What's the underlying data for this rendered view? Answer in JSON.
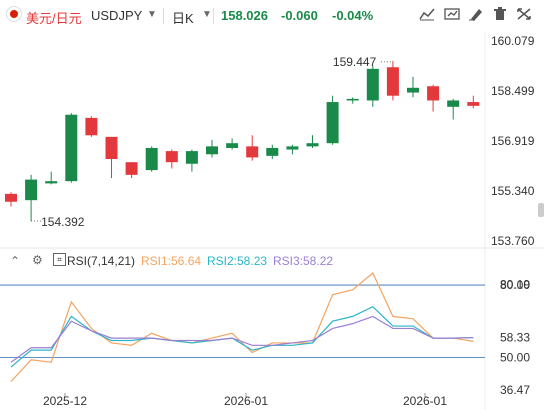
{
  "header": {
    "pair_name": "美元/日元",
    "symbol": "USDJPY",
    "period": "日K",
    "last_price": "158.026",
    "change": "-0.060",
    "change_pct": "-0.04%",
    "tool_icons": [
      "line-chart-icon",
      "compare-icon",
      "draw-icon",
      "delete-icon",
      "fullscreen-icon"
    ]
  },
  "price_axis": {
    "labels": [
      "160.079",
      "158.499",
      "156.919",
      "155.340",
      "153.760"
    ]
  },
  "annotations": {
    "high": "159.447",
    "low": "154.392"
  },
  "x_axis": {
    "labels": [
      "2025-12",
      "2026-01",
      "2026-01"
    ]
  },
  "rsi": {
    "title": "RSI(7,14,21)",
    "rsi1": "RSI1:56.64",
    "rsi2": "RSI2:58.23",
    "rsi3": "RSI3:58.22",
    "axis_labels": [
      "80.00",
      "80.19",
      "58.33",
      "50.00",
      "36.47"
    ],
    "colors": {
      "rsi1": "#f4a460",
      "rsi2": "#2bb5c8",
      "rsi3": "#9b7fd4"
    }
  },
  "colors": {
    "up": "#1a8a4a",
    "down": "#e4393c",
    "accent": "#2b6cb0"
  },
  "chart_data": {
    "type": "candlestick",
    "price_range": [
      153.76,
      160.079
    ],
    "candles": [
      {
        "o": 155.25,
        "c": 155.0,
        "h": 155.3,
        "l": 154.85,
        "dir": "down"
      },
      {
        "o": 155.05,
        "c": 155.7,
        "h": 155.85,
        "l": 154.39,
        "dir": "up"
      },
      {
        "o": 155.58,
        "c": 155.65,
        "h": 155.95,
        "l": 155.55,
        "dir": "up"
      },
      {
        "o": 155.65,
        "c": 157.75,
        "h": 157.8,
        "l": 155.6,
        "dir": "up"
      },
      {
        "o": 157.65,
        "c": 157.1,
        "h": 157.7,
        "l": 157.05,
        "dir": "down"
      },
      {
        "o": 157.05,
        "c": 156.35,
        "h": 157.05,
        "l": 155.75,
        "dir": "down"
      },
      {
        "o": 156.25,
        "c": 155.85,
        "h": 156.25,
        "l": 155.75,
        "dir": "down"
      },
      {
        "o": 156.0,
        "c": 156.7,
        "h": 156.75,
        "l": 155.95,
        "dir": "up"
      },
      {
        "o": 156.6,
        "c": 156.25,
        "h": 156.65,
        "l": 156.05,
        "dir": "down"
      },
      {
        "o": 156.2,
        "c": 156.6,
        "h": 156.65,
        "l": 155.95,
        "dir": "up"
      },
      {
        "o": 156.5,
        "c": 156.75,
        "h": 156.95,
        "l": 156.4,
        "dir": "up"
      },
      {
        "o": 156.7,
        "c": 156.85,
        "h": 157.0,
        "l": 156.65,
        "dir": "up"
      },
      {
        "o": 156.75,
        "c": 156.4,
        "h": 157.1,
        "l": 156.3,
        "dir": "down"
      },
      {
        "o": 156.45,
        "c": 156.7,
        "h": 156.8,
        "l": 156.35,
        "dir": "up"
      },
      {
        "o": 156.65,
        "c": 156.75,
        "h": 156.8,
        "l": 156.5,
        "dir": "up"
      },
      {
        "o": 156.75,
        "c": 156.85,
        "h": 157.1,
        "l": 156.7,
        "dir": "up"
      },
      {
        "o": 156.85,
        "c": 158.15,
        "h": 158.35,
        "l": 156.8,
        "dir": "up"
      },
      {
        "o": 158.2,
        "c": 158.25,
        "h": 158.3,
        "l": 158.1,
        "dir": "up"
      },
      {
        "o": 158.2,
        "c": 159.2,
        "h": 159.3,
        "l": 158.0,
        "dir": "up"
      },
      {
        "o": 159.25,
        "c": 158.35,
        "h": 159.45,
        "l": 158.2,
        "dir": "down"
      },
      {
        "o": 158.45,
        "c": 158.6,
        "h": 158.95,
        "l": 158.3,
        "dir": "up"
      },
      {
        "o": 158.65,
        "c": 158.2,
        "h": 158.7,
        "l": 157.85,
        "dir": "down"
      },
      {
        "o": 158.0,
        "c": 158.2,
        "h": 158.25,
        "l": 157.6,
        "dir": "up"
      },
      {
        "o": 158.15,
        "c": 158.03,
        "h": 158.35,
        "l": 157.95,
        "dir": "down"
      }
    ],
    "rsi_series": [
      {
        "name": "RSI1",
        "values": [
          40,
          49,
          48,
          73,
          62,
          56,
          55,
          60,
          57,
          56,
          58,
          60,
          52,
          56,
          56,
          56,
          76,
          78,
          85,
          67,
          66,
          58,
          58,
          56.64
        ]
      },
      {
        "name": "RSI2",
        "values": [
          46,
          53,
          53,
          67,
          61,
          57,
          57,
          58,
          57,
          56,
          57,
          58,
          53,
          55,
          55,
          56,
          65,
          67,
          71,
          63,
          63,
          58,
          58,
          58.23
        ]
      },
      {
        "name": "RSI3",
        "values": [
          48,
          54,
          54,
          65,
          61,
          58,
          58,
          58,
          57,
          57,
          57,
          58,
          55,
          55,
          56,
          57,
          62,
          64,
          67,
          62,
          62,
          58,
          58,
          58.22
        ]
      }
    ],
    "rsi_range": [
      36.47,
      85.0
    ],
    "ref_lines": [
      80.0,
      50.0
    ]
  }
}
